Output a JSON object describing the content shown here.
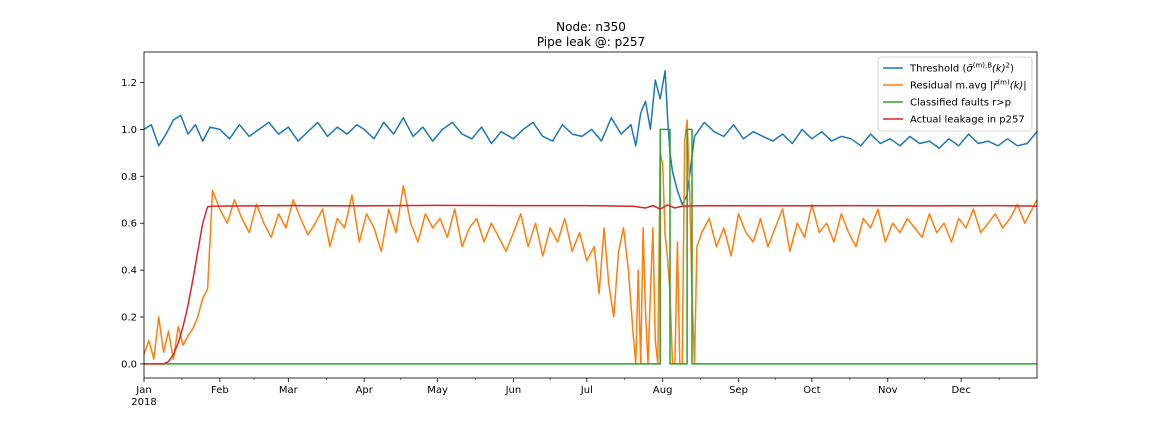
{
  "chart_data": {
    "type": "line",
    "title": "Node: n350",
    "subtitle": "Pipe leak @: p257",
    "xlabel": "",
    "ylabel": "",
    "xlim": [
      0,
      365
    ],
    "ylim": [
      -0.06,
      1.33
    ],
    "grid": false,
    "legend_position": "top-right",
    "yticks": [
      0.0,
      0.2,
      0.4,
      0.6,
      0.8,
      1.0,
      1.2
    ],
    "ytick_labels": [
      "0.0",
      "0.2",
      "0.4",
      "0.6",
      "0.8",
      "1.0",
      "1.2"
    ],
    "xticks": [
      {
        "value": 0,
        "label": "Jan",
        "sublabel": "2018"
      },
      {
        "value": 31,
        "label": "Feb"
      },
      {
        "value": 59,
        "label": "Mar"
      },
      {
        "value": 90,
        "label": "Apr"
      },
      {
        "value": 120,
        "label": "May"
      },
      {
        "value": 151,
        "label": "Jun"
      },
      {
        "value": 181,
        "label": "Jul"
      },
      {
        "value": 212,
        "label": "Aug"
      },
      {
        "value": 243,
        "label": "Sep"
      },
      {
        "value": 273,
        "label": "Oct"
      },
      {
        "value": 304,
        "label": "Nov"
      },
      {
        "value": 334,
        "label": "Dec"
      }
    ],
    "series": [
      {
        "name": "Threshold (σ̃^(m),B(k)²)",
        "legend_main": "Threshold (",
        "legend_sigma": "σ̃",
        "legend_sup": "(m),B",
        "legend_rest": "(k)",
        "legend_sup2": "2",
        "legend_close": ")",
        "color": "#1f77b4",
        "x": [
          0,
          3,
          6,
          9,
          12,
          15,
          18,
          21,
          24,
          27,
          31,
          35,
          39,
          43,
          47,
          51,
          55,
          59,
          63,
          67,
          71,
          75,
          79,
          83,
          87,
          90,
          94,
          98,
          102,
          106,
          110,
          114,
          118,
          122,
          126,
          130,
          134,
          138,
          142,
          146,
          151,
          155,
          159,
          163,
          167,
          171,
          175,
          179,
          183,
          187,
          191,
          195,
          199,
          201,
          203,
          205,
          207,
          209,
          211,
          213,
          214,
          215,
          216,
          218,
          220,
          222,
          225,
          229,
          233,
          237,
          241,
          245,
          249,
          253,
          257,
          261,
          265,
          269,
          273,
          277,
          281,
          285,
          289,
          293,
          297,
          301,
          305,
          309,
          313,
          317,
          321,
          325,
          329,
          333,
          337,
          341,
          345,
          349,
          353,
          357,
          361,
          365
        ],
        "y": [
          1.0,
          1.02,
          0.93,
          0.98,
          1.04,
          1.06,
          0.98,
          1.02,
          0.95,
          1.01,
          1.0,
          0.96,
          1.02,
          0.97,
          1.0,
          1.03,
          0.98,
          1.01,
          0.95,
          0.99,
          1.03,
          0.97,
          1.01,
          0.98,
          1.02,
          1.0,
          0.96,
          1.03,
          0.98,
          1.05,
          0.97,
          1.01,
          0.95,
          1.0,
          1.03,
          0.98,
          0.96,
          1.01,
          0.94,
          0.99,
          0.96,
          1.0,
          1.03,
          0.97,
          0.95,
          1.02,
          0.98,
          0.97,
          1.0,
          0.95,
          1.05,
          0.98,
          1.02,
          0.93,
          1.07,
          1.12,
          1.0,
          1.21,
          1.13,
          1.25,
          1.05,
          0.9,
          0.82,
          0.74,
          0.68,
          0.72,
          0.97,
          1.03,
          0.99,
          0.97,
          1.02,
          0.96,
          0.99,
          0.97,
          0.95,
          0.98,
          0.94,
          1.0,
          0.96,
          0.99,
          0.95,
          0.97,
          0.96,
          0.93,
          0.98,
          0.94,
          0.96,
          0.93,
          0.97,
          0.94,
          0.95,
          0.92,
          0.96,
          0.93,
          0.98,
          0.94,
          0.95,
          0.93,
          0.96,
          0.93,
          0.94,
          0.99
        ]
      },
      {
        "name": "Residual m.avg |r̃^(m)(k)|",
        "legend_main": "Residual m.avg |",
        "legend_sigma": "r̃",
        "legend_sup": "(m)",
        "legend_rest": "(k)|",
        "legend_sup2": "",
        "legend_close": "",
        "color": "#ff7f0e",
        "x": [
          0,
          2,
          4,
          6,
          8,
          10,
          12,
          14,
          16,
          18,
          20,
          22,
          24,
          26,
          28,
          31,
          34,
          37,
          40,
          43,
          46,
          49,
          52,
          55,
          58,
          61,
          64,
          67,
          70,
          73,
          76,
          79,
          82,
          85,
          88,
          91,
          94,
          97,
          100,
          103,
          106,
          109,
          112,
          115,
          118,
          121,
          124,
          127,
          130,
          133,
          136,
          139,
          142,
          145,
          148,
          151,
          154,
          157,
          160,
          163,
          166,
          169,
          172,
          175,
          178,
          181,
          184,
          186,
          188,
          190,
          192,
          194,
          196,
          198,
          200,
          201,
          202,
          203,
          204,
          205,
          206,
          207,
          208,
          209,
          210,
          211,
          212,
          213,
          214,
          215,
          216,
          217,
          218,
          219,
          220,
          221,
          222,
          223,
          224,
          225,
          226,
          228,
          231,
          234,
          237,
          240,
          243,
          246,
          249,
          252,
          255,
          258,
          261,
          264,
          267,
          270,
          273,
          276,
          279,
          282,
          285,
          288,
          291,
          294,
          297,
          300,
          303,
          306,
          309,
          312,
          315,
          318,
          321,
          324,
          327,
          330,
          333,
          336,
          339,
          342,
          345,
          348,
          351,
          354,
          357,
          360,
          363,
          365
        ],
        "y": [
          0.04,
          0.1,
          0.02,
          0.2,
          0.05,
          0.14,
          0.02,
          0.16,
          0.08,
          0.12,
          0.15,
          0.2,
          0.28,
          0.32,
          0.74,
          0.66,
          0.6,
          0.7,
          0.62,
          0.56,
          0.68,
          0.6,
          0.54,
          0.64,
          0.58,
          0.7,
          0.62,
          0.55,
          0.6,
          0.66,
          0.5,
          0.62,
          0.58,
          0.72,
          0.52,
          0.64,
          0.58,
          0.48,
          0.66,
          0.56,
          0.76,
          0.6,
          0.52,
          0.64,
          0.58,
          0.62,
          0.54,
          0.66,
          0.5,
          0.58,
          0.62,
          0.52,
          0.6,
          0.54,
          0.48,
          0.56,
          0.64,
          0.5,
          0.6,
          0.46,
          0.58,
          0.52,
          0.62,
          0.48,
          0.56,
          0.44,
          0.5,
          0.3,
          0.58,
          0.34,
          0.2,
          0.48,
          0.58,
          0.4,
          0.12,
          0.0,
          0.4,
          0.0,
          0.58,
          0.22,
          0.0,
          0.3,
          0.58,
          0.1,
          0.0,
          0.9,
          0.85,
          0.55,
          0.45,
          0.3,
          0.0,
          0.0,
          0.52,
          0.0,
          0.0,
          0.95,
          1.04,
          0.75,
          0.3,
          0.0,
          0.5,
          0.56,
          0.62,
          0.5,
          0.58,
          0.46,
          0.64,
          0.56,
          0.52,
          0.62,
          0.5,
          0.58,
          0.66,
          0.48,
          0.6,
          0.54,
          0.68,
          0.56,
          0.6,
          0.52,
          0.64,
          0.56,
          0.5,
          0.62,
          0.58,
          0.66,
          0.52,
          0.6,
          0.56,
          0.62,
          0.58,
          0.54,
          0.64,
          0.56,
          0.6,
          0.52,
          0.62,
          0.58,
          0.66,
          0.56,
          0.6,
          0.64,
          0.58,
          0.62,
          0.68,
          0.6,
          0.66,
          0.7
        ]
      },
      {
        "name": "Classified faults r>p",
        "color": "#2ca02c",
        "x": [
          0,
          211,
          211,
          215,
          215,
          222,
          222,
          224,
          224,
          365
        ],
        "y": [
          0,
          0,
          1,
          1,
          0,
          0,
          1,
          1,
          0,
          0
        ]
      },
      {
        "name": "Actual leakage in p257",
        "color": "#d62728",
        "x": [
          0,
          8,
          10,
          12,
          14,
          16,
          18,
          20,
          22,
          24,
          26,
          28,
          30,
          60,
          90,
          120,
          150,
          180,
          200,
          205,
          208,
          211,
          214,
          217,
          220,
          230,
          260,
          290,
          320,
          350,
          365
        ],
        "y": [
          0,
          0,
          0.01,
          0.04,
          0.09,
          0.16,
          0.25,
          0.36,
          0.48,
          0.6,
          0.67,
          0.672,
          0.673,
          0.675,
          0.674,
          0.676,
          0.675,
          0.675,
          0.672,
          0.665,
          0.675,
          0.66,
          0.678,
          0.665,
          0.673,
          0.675,
          0.674,
          0.675,
          0.674,
          0.675,
          0.673
        ]
      }
    ]
  }
}
